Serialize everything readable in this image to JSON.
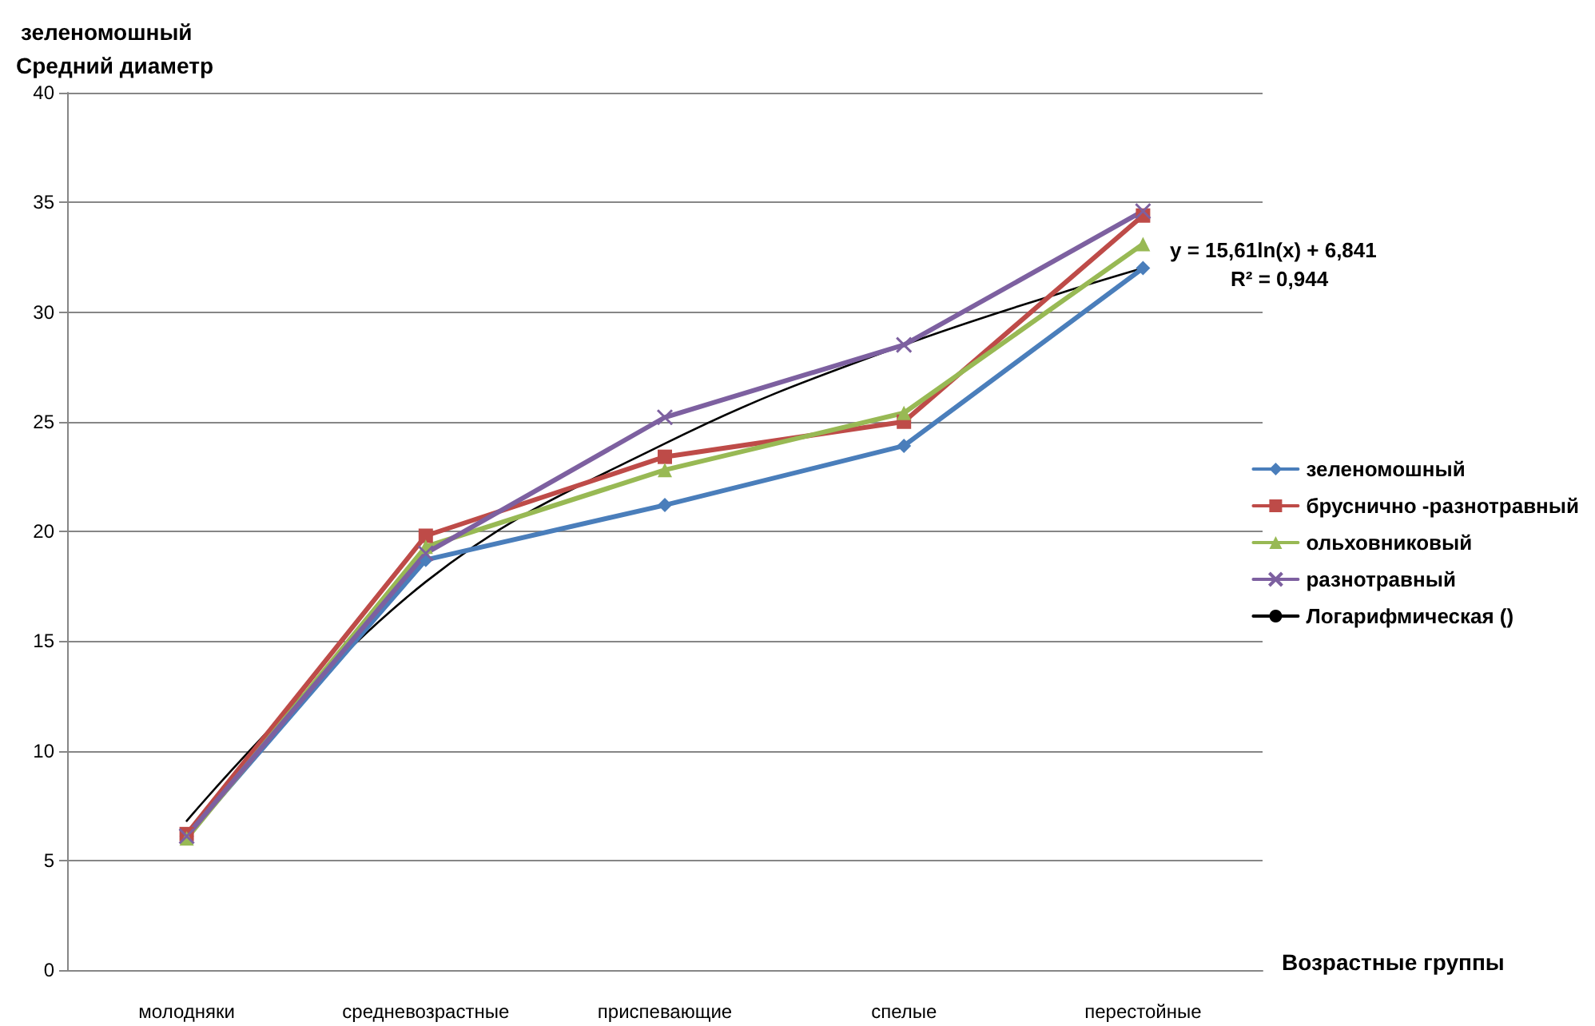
{
  "chart_data": {
    "type": "line",
    "title": "зеленомошный",
    "ylabel": "Средний диаметр",
    "xlabel": "Возрастные группы",
    "categories": [
      "молодняки",
      "средневозрастные",
      "приспевающие",
      "спелые",
      "перестойные"
    ],
    "series": [
      {
        "name": "зеленомошный",
        "color": "#4a7ebb",
        "marker": "diamond",
        "values": [
          6.1,
          18.7,
          21.2,
          23.9,
          32.0
        ]
      },
      {
        "name": "бруснично -разнотравный",
        "color": "#be4b48",
        "marker": "square",
        "values": [
          6.2,
          19.8,
          23.4,
          25.0,
          34.4
        ]
      },
      {
        "name": "ольховниковый",
        "color": "#98b954",
        "marker": "triangle",
        "values": [
          6.0,
          19.3,
          22.8,
          25.4,
          33.1
        ]
      },
      {
        "name": "разнотравный",
        "color": "#7d60a0",
        "marker": "cross",
        "values": [
          6.1,
          19.0,
          25.2,
          28.5,
          34.6
        ]
      },
      {
        "name": "Логарифмическая ()",
        "color": "#000000",
        "marker": "none",
        "values": [
          6.8,
          17.7,
          24.0,
          28.5,
          32.0
        ]
      }
    ],
    "ylim": [
      0,
      40
    ],
    "yticks": [
      0,
      5,
      10,
      15,
      20,
      25,
      30,
      35,
      40
    ],
    "grid": "y",
    "legend": "right",
    "annotations": [
      "y = 15,61ln(x) + 6,841",
      "R² = 0,944"
    ]
  }
}
